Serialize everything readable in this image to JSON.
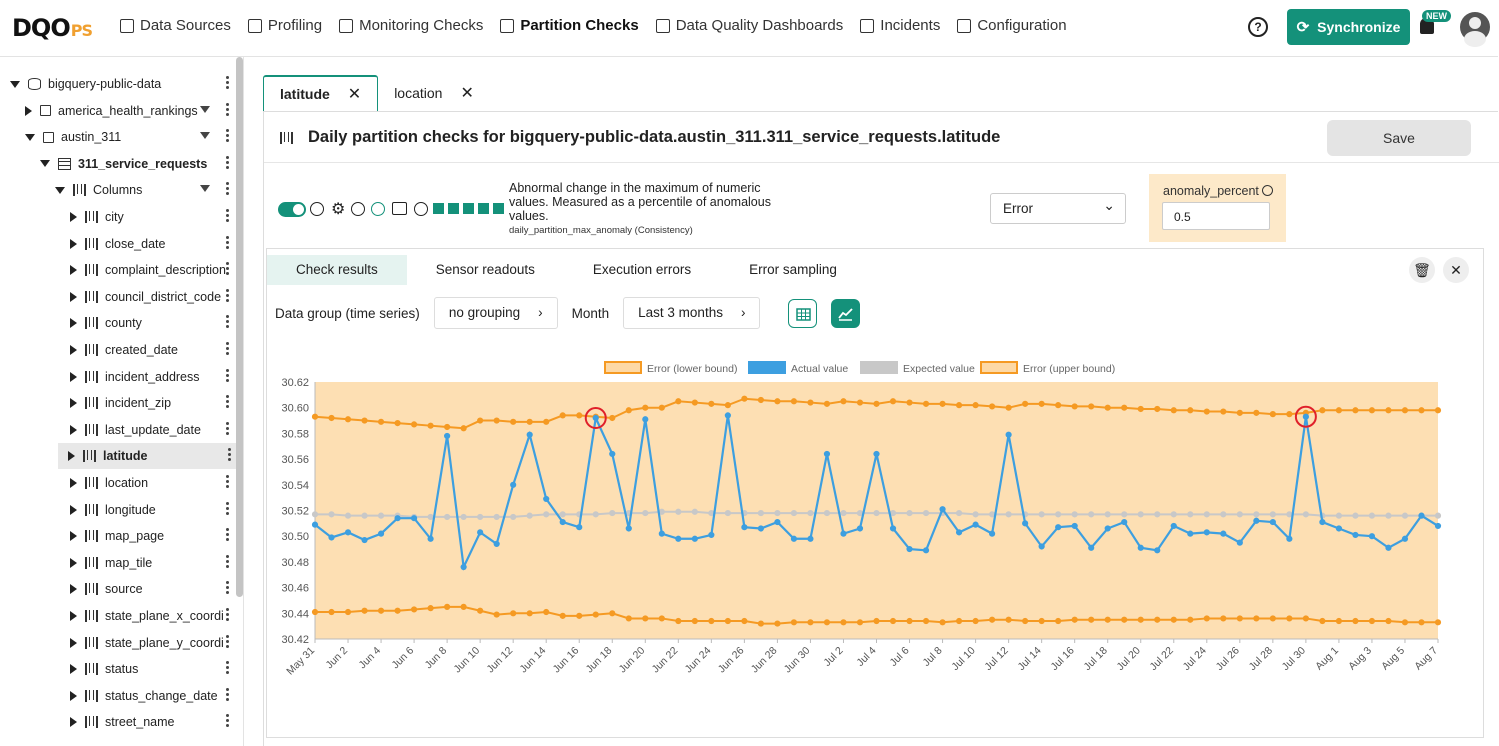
{
  "brand": {
    "logo_main": "DQO",
    "logo_suffix": "PS"
  },
  "nav": {
    "items": [
      {
        "label": "Data Sources",
        "active": false
      },
      {
        "label": "Profiling",
        "active": false
      },
      {
        "label": "Monitoring Checks",
        "active": false
      },
      {
        "label": "Partition Checks",
        "active": true
      },
      {
        "label": "Data Quality Dashboards",
        "active": false
      },
      {
        "label": "Incidents",
        "active": false
      },
      {
        "label": "Configuration",
        "active": false
      }
    ],
    "help_label": "?",
    "sync_label": "Synchronize",
    "new_badge": "NEW"
  },
  "tree": {
    "items": [
      {
        "label": "bigquery-public-data",
        "type": "db",
        "expand": "down",
        "indent": 0
      },
      {
        "label": "america_health_rankings",
        "type": "schema",
        "expand": "right",
        "indent": 1,
        "filter": true
      },
      {
        "label": "austin_311",
        "type": "schema",
        "expand": "down",
        "indent": 1,
        "filter": true
      },
      {
        "label": "311_service_requests",
        "type": "table",
        "expand": "down",
        "indent": 2,
        "bold": true
      },
      {
        "label": "Columns",
        "type": "col",
        "expand": "down",
        "indent": 3,
        "filter": true
      },
      {
        "label": "city",
        "type": "col",
        "expand": "right",
        "indent": 4
      },
      {
        "label": "close_date",
        "type": "col",
        "expand": "right",
        "indent": 4
      },
      {
        "label": "complaint_description",
        "type": "col",
        "expand": "right",
        "indent": 4
      },
      {
        "label": "council_district_code",
        "type": "col",
        "expand": "right",
        "indent": 4
      },
      {
        "label": "county",
        "type": "col",
        "expand": "right",
        "indent": 4
      },
      {
        "label": "created_date",
        "type": "col",
        "expand": "right",
        "indent": 4
      },
      {
        "label": "incident_address",
        "type": "col",
        "expand": "right",
        "indent": 4
      },
      {
        "label": "incident_zip",
        "type": "col",
        "expand": "right",
        "indent": 4
      },
      {
        "label": "last_update_date",
        "type": "col",
        "expand": "right",
        "indent": 4
      },
      {
        "label": "latitude",
        "type": "col",
        "expand": "right",
        "indent": 4,
        "selected": true
      },
      {
        "label": "location",
        "type": "col",
        "expand": "right",
        "indent": 4
      },
      {
        "label": "longitude",
        "type": "col",
        "expand": "right",
        "indent": 4
      },
      {
        "label": "map_page",
        "type": "col",
        "expand": "right",
        "indent": 4
      },
      {
        "label": "map_tile",
        "type": "col",
        "expand": "right",
        "indent": 4
      },
      {
        "label": "source",
        "type": "col",
        "expand": "right",
        "indent": 4
      },
      {
        "label": "state_plane_x_coordi",
        "type": "col",
        "expand": "right",
        "indent": 4
      },
      {
        "label": "state_plane_y_coordi",
        "type": "col",
        "expand": "right",
        "indent": 4
      },
      {
        "label": "status",
        "type": "col",
        "expand": "right",
        "indent": 4
      },
      {
        "label": "status_change_date",
        "type": "col",
        "expand": "right",
        "indent": 4
      },
      {
        "label": "street_name",
        "type": "col",
        "expand": "right",
        "indent": 4
      }
    ]
  },
  "tabs": [
    {
      "label": "latitude",
      "active": true
    },
    {
      "label": "location",
      "active": false
    }
  ],
  "panel": {
    "title": "Daily partition checks for bigquery-public-data.austin_311.311_service_requests.latitude",
    "save_label": "Save"
  },
  "check": {
    "description": "Abnormal change in the maximum of numeric values. Measured as a percentile of anomalous values.",
    "check_name": "daily_partition_max_anomaly (Consistency)",
    "severity": "Error",
    "param_label": "anomaly_percent",
    "param_value": "0.5"
  },
  "results": {
    "tabs": [
      "Check results",
      "Sensor readouts",
      "Execution errors",
      "Error sampling"
    ],
    "active_tab": 0,
    "group_label": "Data group (time series)",
    "group_value": "no grouping",
    "month_label": "Month",
    "month_value": "Last 3 months"
  },
  "colors": {
    "accent": "#14917a",
    "actual": "#3d9fe0",
    "expected": "#c8c8c8",
    "bound": "#f59a23",
    "band": "#fdd9a6",
    "highlight": "#e0202a"
  },
  "chart_data": {
    "type": "line",
    "legend": [
      "Error (lower bound)",
      "Actual value",
      "Expected value",
      "Error (upper bound)"
    ],
    "legend_position": "top",
    "ylim": [
      30.42,
      30.62
    ],
    "yticks": [
      30.62,
      30.6,
      30.58,
      30.56,
      30.54,
      30.52,
      30.5,
      30.48,
      30.46,
      30.44,
      30.42
    ],
    "x_start": "May 31",
    "x_tick_labels": [
      "May 31",
      "Jun 2",
      "Jun 4",
      "Jun 6",
      "Jun 8",
      "Jun 10",
      "Jun 12",
      "Jun 14",
      "Jun 16",
      "Jun 18",
      "Jun 20",
      "Jun 22",
      "Jun 24",
      "Jun 26",
      "Jun 28",
      "Jun 30",
      "Jul 2",
      "Jul 4",
      "Jul 6",
      "Jul 8",
      "Jul 10",
      "Jul 12",
      "Jul 14",
      "Jul 16",
      "Jul 18",
      "Jul 20",
      "Jul 22",
      "Jul 24",
      "Jul 26",
      "Jul 28",
      "Jul 30",
      "Aug 1",
      "Aug 3",
      "Aug 5",
      "Aug 7"
    ],
    "series": [
      {
        "name": "Actual value",
        "values": [
          30.509,
          30.499,
          30.503,
          30.497,
          30.502,
          30.514,
          30.514,
          30.498,
          30.578,
          30.476,
          30.503,
          30.494,
          30.54,
          30.579,
          30.529,
          30.511,
          30.507,
          30.592,
          30.564,
          30.506,
          30.591,
          30.502,
          30.498,
          30.498,
          30.501,
          30.594,
          30.507,
          30.506,
          30.511,
          30.498,
          30.498,
          30.564,
          30.502,
          30.506,
          30.564,
          30.506,
          30.49,
          30.489,
          30.521,
          30.503,
          30.509,
          30.502,
          30.579,
          30.51,
          30.492,
          30.507,
          30.508,
          30.491,
          30.506,
          30.511,
          30.491,
          30.489,
          30.508,
          30.502,
          30.503,
          30.502,
          30.495,
          30.512,
          30.511,
          30.498,
          30.593,
          30.511,
          30.506,
          30.501,
          30.5,
          30.491,
          30.498,
          30.516,
          30.508
        ]
      },
      {
        "name": "Expected value",
        "values": [
          30.517,
          30.517,
          30.516,
          30.516,
          30.516,
          30.516,
          30.515,
          30.515,
          30.515,
          30.515,
          30.515,
          30.515,
          30.515,
          30.516,
          30.517,
          30.517,
          30.517,
          30.517,
          30.518,
          30.518,
          30.518,
          30.519,
          30.519,
          30.519,
          30.518,
          30.518,
          30.518,
          30.518,
          30.518,
          30.518,
          30.518,
          30.518,
          30.518,
          30.518,
          30.518,
          30.518,
          30.518,
          30.518,
          30.518,
          30.518,
          30.517,
          30.517,
          30.517,
          30.517,
          30.517,
          30.517,
          30.517,
          30.517,
          30.517,
          30.517,
          30.517,
          30.517,
          30.517,
          30.517,
          30.517,
          30.517,
          30.517,
          30.517,
          30.517,
          30.517,
          30.517,
          30.516,
          30.516,
          30.516,
          30.516,
          30.516,
          30.516,
          30.516,
          30.516
        ]
      },
      {
        "name": "Error (upper bound)",
        "values": [
          30.593,
          30.592,
          30.591,
          30.59,
          30.589,
          30.588,
          30.587,
          30.586,
          30.585,
          30.584,
          30.59,
          30.59,
          30.589,
          30.589,
          30.589,
          30.594,
          30.594,
          30.593,
          30.592,
          30.598,
          30.6,
          30.6,
          30.605,
          30.604,
          30.603,
          30.602,
          30.607,
          30.606,
          30.605,
          30.605,
          30.604,
          30.603,
          30.605,
          30.604,
          30.603,
          30.605,
          30.604,
          30.603,
          30.603,
          30.602,
          30.602,
          30.601,
          30.6,
          30.603,
          30.603,
          30.602,
          30.601,
          30.601,
          30.6,
          30.6,
          30.599,
          30.599,
          30.598,
          30.598,
          30.597,
          30.597,
          30.596,
          30.596,
          30.595,
          30.595,
          30.596,
          30.598,
          30.598,
          30.598,
          30.598,
          30.598,
          30.598,
          30.598,
          30.598
        ]
      },
      {
        "name": "Error (lower bound)",
        "values": [
          30.441,
          30.441,
          30.441,
          30.442,
          30.442,
          30.442,
          30.443,
          30.444,
          30.445,
          30.445,
          30.442,
          30.439,
          30.44,
          30.44,
          30.441,
          30.438,
          30.438,
          30.439,
          30.44,
          30.436,
          30.436,
          30.436,
          30.434,
          30.434,
          30.434,
          30.434,
          30.434,
          30.432,
          30.432,
          30.433,
          30.433,
          30.433,
          30.433,
          30.433,
          30.434,
          30.434,
          30.434,
          30.434,
          30.433,
          30.434,
          30.434,
          30.435,
          30.435,
          30.434,
          30.434,
          30.434,
          30.435,
          30.435,
          30.435,
          30.435,
          30.435,
          30.435,
          30.435,
          30.435,
          30.436,
          30.436,
          30.436,
          30.436,
          30.436,
          30.436,
          30.436,
          30.434,
          30.434,
          30.434,
          30.434,
          30.434,
          30.433,
          30.433,
          30.433
        ]
      }
    ],
    "anomalies_index": [
      17,
      60
    ]
  }
}
